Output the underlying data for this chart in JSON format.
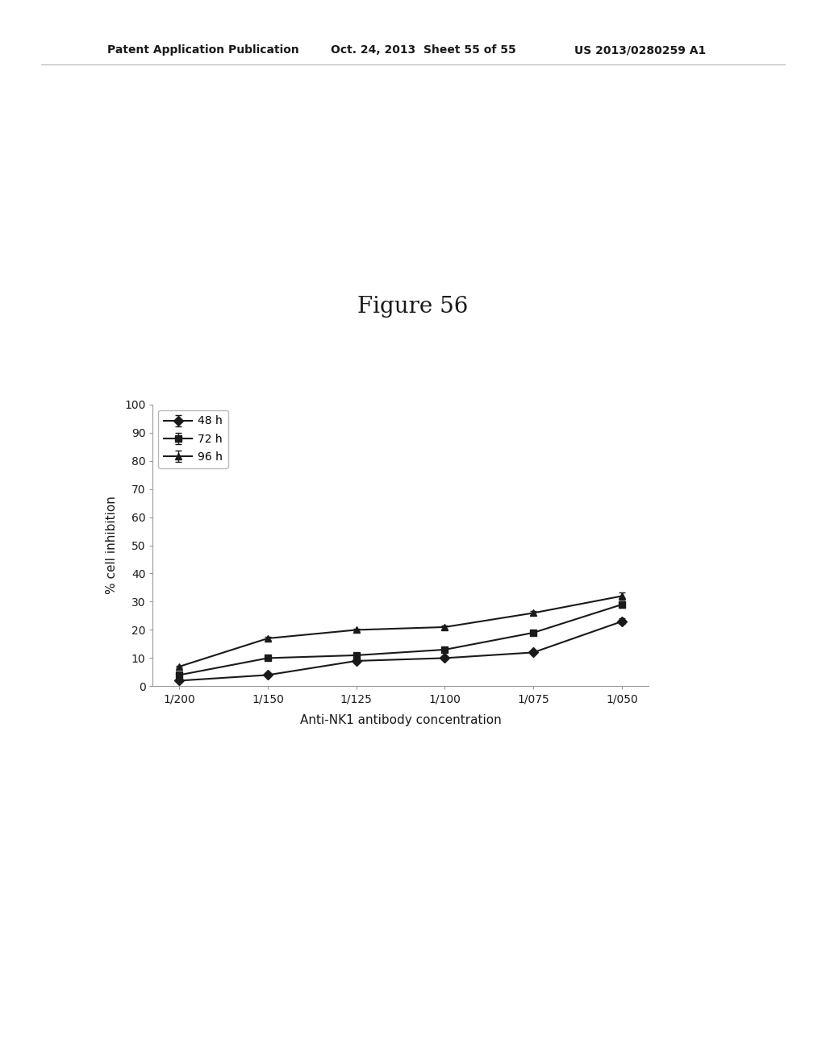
{
  "x_labels": [
    "1/200",
    "1/150",
    "1/125",
    "1/100",
    "1/075",
    "1/050"
  ],
  "x_values": [
    0,
    1,
    2,
    3,
    4,
    5
  ],
  "series": [
    {
      "label": "48 h",
      "values": [
        2.0,
        4.0,
        9.0,
        10.0,
        12.0,
        23.0
      ],
      "errors": [
        0.3,
        0.4,
        0.5,
        0.5,
        0.5,
        1.0
      ],
      "marker": "D",
      "color": "#1a1a1a"
    },
    {
      "label": "72 h",
      "values": [
        4.0,
        10.0,
        11.0,
        13.0,
        19.0,
        29.0
      ],
      "errors": [
        0.3,
        0.5,
        0.5,
        0.5,
        0.8,
        1.2
      ],
      "marker": "s",
      "color": "#1a1a1a"
    },
    {
      "label": "96 h",
      "values": [
        7.0,
        17.0,
        20.0,
        21.0,
        26.0,
        32.0
      ],
      "errors": [
        0.3,
        0.5,
        0.5,
        0.5,
        0.8,
        1.2
      ],
      "marker": "^",
      "color": "#1a1a1a"
    }
  ],
  "ylabel": "% cell inhibition",
  "xlabel": "Anti-NK1 antibody concentration",
  "figure_title": "Figure 56",
  "header_left": "Patent Application Publication",
  "header_center": "Oct. 24, 2013  Sheet 55 of 55",
  "header_right": "US 2013/0280259 A1",
  "ylim": [
    0,
    100
  ],
  "yticks": [
    0,
    10,
    20,
    30,
    40,
    50,
    60,
    70,
    80,
    90,
    100
  ],
  "background_color": "#ffffff",
  "line_color": "#1a1a1a",
  "marker_size": 6,
  "line_width": 1.5,
  "capsize": 3,
  "header_fontsize": 10,
  "title_fontsize": 20,
  "axis_fontsize": 10,
  "label_fontsize": 11
}
